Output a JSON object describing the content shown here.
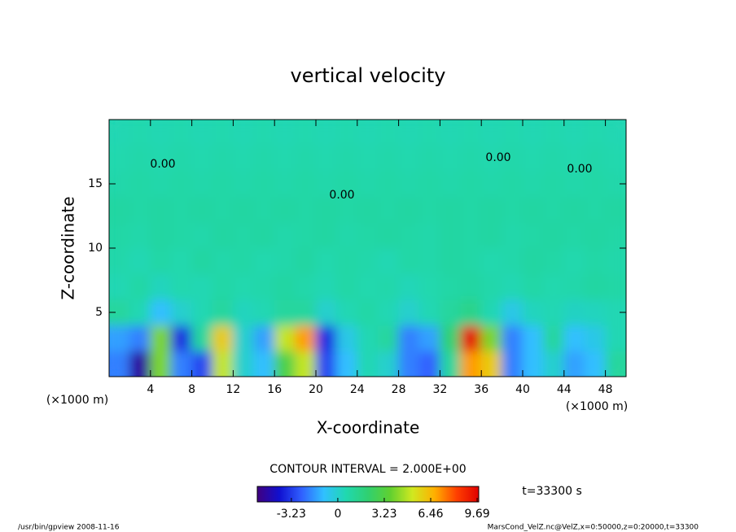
{
  "chart_data": {
    "type": "heatmap",
    "title": "vertical velocity",
    "xlabel": "X-coordinate",
    "ylabel": "Z-coordinate",
    "x_unit_labels": [
      "(×1000 m)",
      "(×1000 m)"
    ],
    "contour_interval": "CONTOUR INTERVAL = 2.000E+00",
    "time_label": "t=33300 s",
    "footer_left": "/usr/bin/gpview   2008-11-16",
    "footer_right": "MarsCond_VelZ.nc@VelZ,x=0:50000,z=0:20000,t=33300",
    "contour_labels": [
      "0.00",
      "0.00",
      "0.00",
      "0.00"
    ],
    "xlim": [
      0,
      50
    ],
    "ylim": [
      0,
      20
    ],
    "xticks": [
      4,
      8,
      12,
      16,
      20,
      24,
      28,
      32,
      36,
      40,
      44,
      48
    ],
    "yticks": [
      5,
      10,
      15
    ],
    "clim": [
      -5.6,
      9.8
    ],
    "colorbar_ticks": [
      -3.23,
      0,
      3.23,
      6.46,
      9.69
    ],
    "colorscale": [
      "#400080",
      "#1010d0",
      "#3060ff",
      "#30c0ff",
      "#20d8b0",
      "#30d070",
      "#60d030",
      "#d0e820",
      "#ffb000",
      "#ff4000",
      "#e00000"
    ],
    "x": [
      1,
      3,
      5,
      7,
      9,
      11,
      13,
      15,
      17,
      19,
      21,
      23,
      25,
      27,
      29,
      31,
      33,
      35,
      37,
      39,
      41,
      43,
      45,
      47,
      49
    ],
    "y": [
      1,
      3,
      5,
      7,
      9,
      11,
      13,
      15,
      17,
      19
    ],
    "values": [
      [
        -2,
        -5,
        4,
        -2,
        -3,
        5,
        0,
        -1,
        3,
        5,
        -3,
        -1,
        0.5,
        0,
        -2,
        -2.5,
        1,
        7,
        6,
        -2,
        -1,
        0,
        -1.5,
        -1,
        1
      ],
      [
        -1.5,
        -2,
        4,
        -3.5,
        1,
        6,
        0,
        -1.5,
        5,
        7,
        -3.5,
        -0.5,
        0.5,
        1,
        -2,
        -1.5,
        2,
        9.5,
        4,
        -2,
        -1,
        1,
        -1,
        -0.5,
        0.5
      ],
      [
        1,
        0.5,
        -1,
        0,
        0.5,
        1,
        0.3,
        0.5,
        1,
        1,
        0,
        0.5,
        0.8,
        0.5,
        0,
        0.5,
        1,
        1.5,
        0.5,
        -0.5,
        0.3,
        0.5,
        0.2,
        0.3,
        0.5
      ],
      [
        0.5,
        0.8,
        0.3,
        0.6,
        0.5,
        0.8,
        0.6,
        0.7,
        0.9,
        0.7,
        0.5,
        0.8,
        0.6,
        0.7,
        0.4,
        0.6,
        0.8,
        0.9,
        0.7,
        0.5,
        0.8,
        0.6,
        0.7,
        0.9,
        0.8
      ],
      [
        0.7,
        0.5,
        0.8,
        0.6,
        0.9,
        0.7,
        0.8,
        0.6,
        0.7,
        0.9,
        0.6,
        0.8,
        0.7,
        0.5,
        0.8,
        0.7,
        0.9,
        0.8,
        0.6,
        0.7,
        0.9,
        0.8,
        0.6,
        0.8,
        0.7
      ],
      [
        0.8,
        0.7,
        0.9,
        0.8,
        0.7,
        0.9,
        0.8,
        0.9,
        0.7,
        0.8,
        0.9,
        0.7,
        0.8,
        0.9,
        0.8,
        0.7,
        0.9,
        0.8,
        0.9,
        0.7,
        0.8,
        0.9,
        0.8,
        0.9,
        0.8
      ],
      [
        0.9,
        0.8,
        0.9,
        0.8,
        0.9,
        0.8,
        0.9,
        0.8,
        0.9,
        0.8,
        0.9,
        0.8,
        0.9,
        0.8,
        0.9,
        0.8,
        0.9,
        0.8,
        0.9,
        0.8,
        0.9,
        0.8,
        0.9,
        0.8,
        0.9
      ],
      [
        0.7,
        0.8,
        0.7,
        0.8,
        0.7,
        0.8,
        0.7,
        0.8,
        0.7,
        0.8,
        0.7,
        0.8,
        0.7,
        0.8,
        0.7,
        0.8,
        0.7,
        0.8,
        0.7,
        0.8,
        0.7,
        0.8,
        0.7,
        0.8,
        0.7
      ],
      [
        0.6,
        0.7,
        0.6,
        0.7,
        0.6,
        0.7,
        0.6,
        0.7,
        0.6,
        0.7,
        0.6,
        0.7,
        0.6,
        0.7,
        0.6,
        0.7,
        0.6,
        0.7,
        0.6,
        0.7,
        0.6,
        0.7,
        0.6,
        0.7,
        0.6
      ],
      [
        0.5,
        0.6,
        0.5,
        0.6,
        0.5,
        0.6,
        0.5,
        0.6,
        0.5,
        0.6,
        0.5,
        0.6,
        0.5,
        0.6,
        0.5,
        0.6,
        0.5,
        0.6,
        0.5,
        0.6,
        0.5,
        0.6,
        0.5,
        0.6,
        0.5
      ]
    ]
  }
}
